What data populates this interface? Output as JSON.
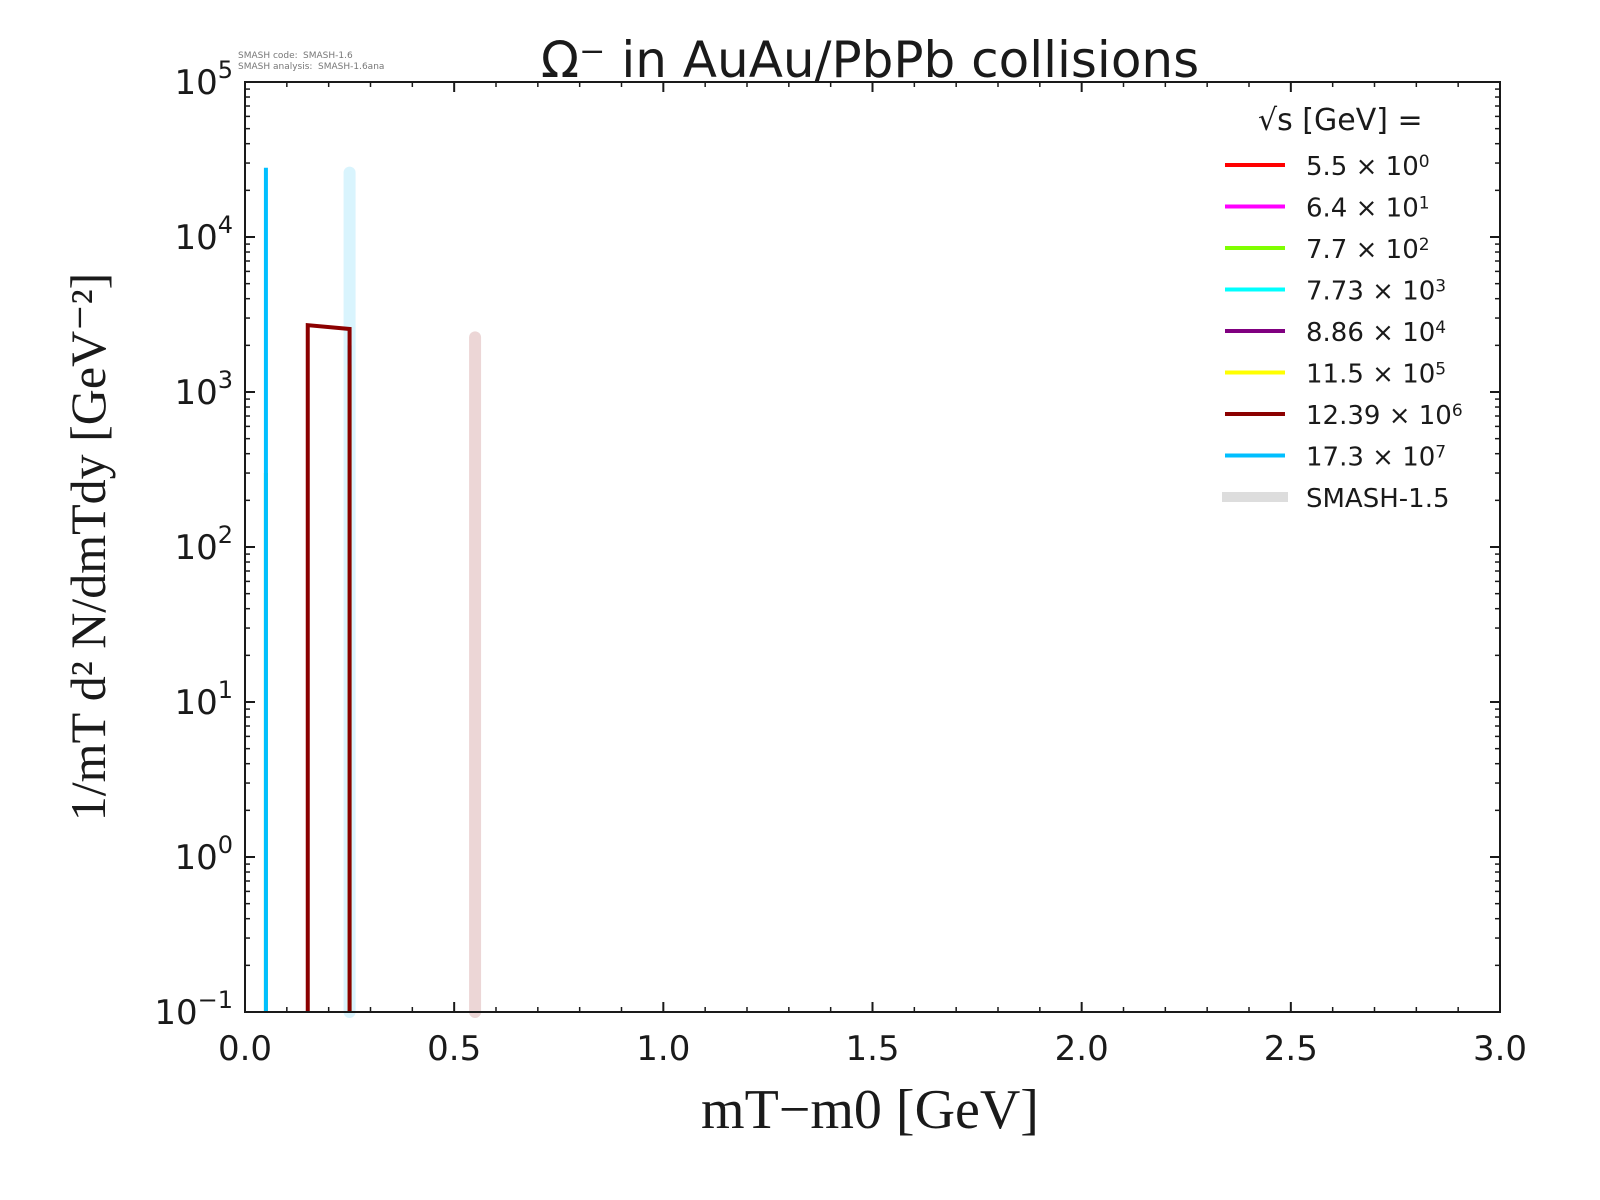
{
  "chart_data": {
    "type": "line",
    "title": "Ω⁻ in AuAu/PbPb collisions",
    "xlabel": "mT−m0 [GeV]",
    "ylabel": "1/mT d² N/dmTdy [GeV⁻²]",
    "xlim": [
      0.0,
      3.0
    ],
    "ylim": [
      0.1,
      100000
    ],
    "yscale": "log",
    "xticks": [
      "0.0",
      "0.5",
      "1.0",
      "1.5",
      "2.0",
      "2.5",
      "3.0"
    ],
    "yticks": [
      {
        "base": "10",
        "exp": "−1"
      },
      {
        "base": "10",
        "exp": "0"
      },
      {
        "base": "10",
        "exp": "1"
      },
      {
        "base": "10",
        "exp": "2"
      },
      {
        "base": "10",
        "exp": "3"
      },
      {
        "base": "10",
        "exp": "4"
      },
      {
        "base": "10",
        "exp": "5"
      }
    ],
    "annotation": {
      "line1_label": "SMASH code:",
      "line1_value": "SMASH-1.6",
      "line2_label": "SMASH analysis:",
      "line2_value": "SMASH-1.6ana"
    },
    "legend": {
      "title": "√s  [GeV] =",
      "placement": "top-right"
    },
    "series": [
      {
        "name": "5.5",
        "exp": "0",
        "color": "#ff0000",
        "x": [],
        "y": []
      },
      {
        "name": "6.4",
        "exp": "1",
        "color": "#ff00ff",
        "x": [],
        "y": []
      },
      {
        "name": "7.7",
        "exp": "2",
        "color": "#7fff00",
        "x": [
          0.05,
          0.05
        ],
        "y": [
          0.1,
          300
        ]
      },
      {
        "name": "7.73",
        "exp": "3",
        "color": "#00ffff",
        "x": [
          0.25,
          0.25
        ],
        "y": [
          0.1,
          2000
        ]
      },
      {
        "name": "8.86",
        "exp": "4",
        "color": "#800080",
        "x": [],
        "y": []
      },
      {
        "name": "11.5",
        "exp": "5",
        "color": "#ffff00",
        "x": [
          0.25,
          0.25
        ],
        "y": [
          0.1,
          1500
        ]
      },
      {
        "name": "12.39",
        "exp": "6",
        "color": "#8b0000",
        "x": [
          0.15,
          0.15,
          0.25,
          0.25
        ],
        "y": [
          0.1,
          2700,
          2550,
          0.1
        ]
      },
      {
        "name": "17.3",
        "exp": "7",
        "color": "#00bfff",
        "x": [
          0.05,
          0.05
        ],
        "y": [
          0.1,
          28000
        ]
      }
    ],
    "reference_series": [
      {
        "name": "SMASH-1.5",
        "color": "#dddddd",
        "legend": true,
        "x": [],
        "y": []
      },
      {
        "name": "SMASH-1.5 (17.3)",
        "color": "#d9f4fd",
        "legend": false,
        "x": [
          0.25,
          0.25
        ],
        "y": [
          0.1,
          26000
        ]
      },
      {
        "name": "SMASH-1.5 (12.39)",
        "color": "#ecd6d6",
        "legend": false,
        "x": [
          0.55,
          0.55
        ],
        "y": [
          0.1,
          2250
        ]
      }
    ]
  }
}
